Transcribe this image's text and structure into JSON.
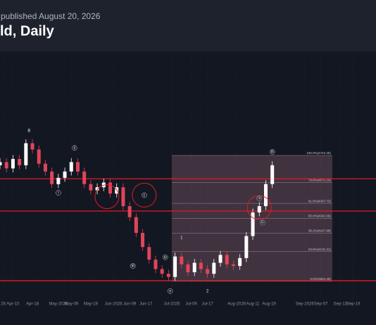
{
  "header": {
    "subtitle": "published August 20, 2026",
    "title": "ld, Daily"
  },
  "chart_data": {
    "type": "candlestick",
    "x": [
      0,
      2,
      4,
      6,
      8,
      10,
      12,
      14,
      16,
      18,
      20,
      22,
      24,
      26,
      28,
      30,
      32,
      34,
      36,
      38,
      40,
      42,
      44,
      46,
      48,
      50,
      52,
      54,
      56,
      58,
      60,
      62,
      64,
      66,
      68,
      70,
      72,
      74,
      76,
      78,
      80,
      82,
      84
    ],
    "open": [
      4680,
      4700,
      4660,
      4720,
      4680,
      4820,
      4780,
      4690,
      4640,
      4560,
      4600,
      4640,
      4700,
      4640,
      4560,
      4520,
      4540,
      4570,
      4500,
      4540,
      4420,
      4350,
      4250,
      4160,
      4080,
      4020,
      3990,
      3970,
      4100,
      4050,
      4000,
      4060,
      4020,
      3990,
      4060,
      4110,
      4050,
      4040,
      4090,
      4230,
      4380,
      4420,
      4560
    ],
    "high": [
      4725,
      4725,
      4745,
      4745,
      4845,
      4845,
      4805,
      4715,
      4665,
      4625,
      4665,
      4725,
      4725,
      4665,
      4585,
      4565,
      4595,
      4595,
      4565,
      4565,
      4445,
      4375,
      4275,
      4185,
      4105,
      4045,
      4015,
      4125,
      4125,
      4075,
      4085,
      4085,
      4045,
      4085,
      4135,
      4135,
      4075,
      4115,
      4255,
      4405,
      4445,
      4585,
      4705
    ],
    "low": [
      4655,
      4635,
      4635,
      4655,
      4655,
      4755,
      4665,
      4615,
      4535,
      4535,
      4575,
      4615,
      4615,
      4535,
      4495,
      4495,
      4515,
      4475,
      4475,
      4395,
      4325,
      4225,
      4135,
      4055,
      3995,
      3965,
      3945,
      3945,
      4025,
      3975,
      3975,
      3995,
      3965,
      3965,
      4035,
      4025,
      4015,
      4015,
      4065,
      4205,
      4355,
      4395,
      4535
    ],
    "close": [
      4700,
      4660,
      4720,
      4680,
      4820,
      4780,
      4690,
      4640,
      4560,
      4600,
      4640,
      4700,
      4640,
      4560,
      4520,
      4540,
      4570,
      4500,
      4540,
      4420,
      4350,
      4250,
      4160,
      4080,
      4020,
      3990,
      3970,
      4100,
      4050,
      4000,
      4060,
      4020,
      3990,
      4060,
      4110,
      4050,
      4040,
      4090,
      4230,
      4380,
      4420,
      4560,
      4680
    ],
    "up_color": "#ffffff",
    "down_color": "#e0455a",
    "xlim": [
      0,
      116
    ],
    "ylim": [
      3830,
      5404
    ],
    "xticks": [
      {
        "value": 1,
        "label": "26"
      },
      {
        "value": 4,
        "label": "Apr-10"
      },
      {
        "value": 10,
        "label": "Apr-18"
      },
      {
        "value": 18,
        "label": "May-2026"
      },
      {
        "value": 22,
        "label": "May-09"
      },
      {
        "value": 28,
        "label": "May-19"
      },
      {
        "value": 35,
        "label": "Jun-2026"
      },
      {
        "value": 40,
        "label": "Jun-09"
      },
      {
        "value": 45,
        "label": "Jun-17"
      },
      {
        "value": 53,
        "label": "Jul-2026"
      },
      {
        "value": 59,
        "label": "Jul-09"
      },
      {
        "value": 64,
        "label": "Jul-17"
      },
      {
        "value": 73,
        "label": "Aug-2026"
      },
      {
        "value": 78,
        "label": "Aug-11"
      },
      {
        "value": 83,
        "label": "Aug-19"
      },
      {
        "value": 94,
        "label": "Sep-2026"
      },
      {
        "value": 99,
        "label": "Sep-07"
      },
      {
        "value": 105,
        "label": "Sep-13"
      },
      {
        "value": 109,
        "label": "Sep-19"
      }
    ],
    "grid": true,
    "levels": [
      4594,
      4389,
      3946
    ],
    "level_color": "#e31b23",
    "fib_x": [
      53,
      102.5
    ],
    "fib": [
      {
        "value": 4742.26,
        "label": "100.0%(4742.26)"
      },
      {
        "value": 4571.1,
        "label": "78.6%(4571.10)"
      },
      {
        "value": 4437.73,
        "label": "61.8%(4437.73)"
      },
      {
        "value": 4342.36,
        "label": "50.0%(4342.36)"
      },
      {
        "value": 4247.98,
        "label": "38.2%(4247.98)"
      },
      {
        "value": 4131.21,
        "label": "23.6%(4131.21)"
      },
      {
        "value": 3942.45,
        "label": "0.0%(3942.45)"
      }
    ],
    "highlights": [
      {
        "x": 33,
        "y": 4480
      },
      {
        "x": 44.5,
        "y": 4490
      },
      {
        "x": 80,
        "y": 4410
      }
    ],
    "annotations": [
      {
        "text": "B",
        "x": 9,
        "y": 4900,
        "circled": false
      },
      {
        "text": "ii",
        "x": 23,
        "y": 4790,
        "circled": true
      },
      {
        "text": "i",
        "x": 18,
        "y": 4505,
        "circled": true
      },
      {
        "text": "c",
        "x": 44.5,
        "y": 4490,
        "circled": true
      },
      {
        "text": "iii",
        "x": 41,
        "y": 4040,
        "circled": true
      },
      {
        "text": "iv",
        "x": 51,
        "y": 4095,
        "circled": true
      },
      {
        "text": "v",
        "x": 52.5,
        "y": 3880,
        "circled": true
      },
      {
        "text": "1",
        "x": 56,
        "y": 4220,
        "circled": false
      },
      {
        "text": "2",
        "x": 64,
        "y": 3880,
        "circled": false
      },
      {
        "text": "iii",
        "x": 80,
        "y": 4470,
        "circled": true
      },
      {
        "text": "iv",
        "x": 81,
        "y": 4315,
        "circled": true
      },
      {
        "text": "iii",
        "x": 84,
        "y": 4765,
        "circled": true
      }
    ]
  }
}
